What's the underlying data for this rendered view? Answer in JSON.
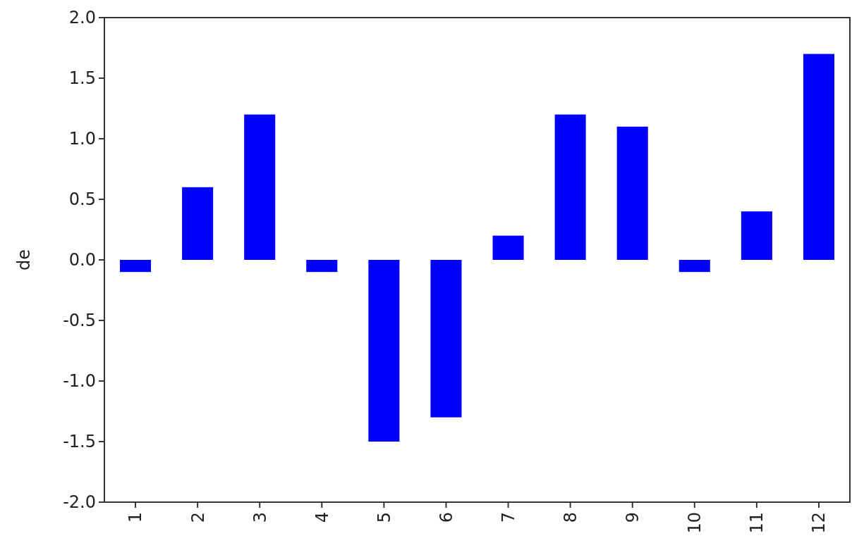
{
  "chart_data": {
    "type": "bar",
    "ylabel": "de",
    "categories": [
      "1",
      "2",
      "3",
      "4",
      "5",
      "6",
      "7",
      "8",
      "9",
      "10",
      "11",
      "12"
    ],
    "values": [
      -0.1,
      0.6,
      1.2,
      -0.1,
      -1.5,
      -1.3,
      0.2,
      1.2,
      1.1,
      -0.1,
      0.4,
      1.7
    ],
    "color": "#0000ff",
    "ylim": [
      -2.0,
      2.0
    ],
    "yticks": [
      {
        "value": -2,
        "label": "-2.0"
      },
      {
        "value": -1.5,
        "label": "-1.5"
      },
      {
        "value": -1,
        "label": "-1.0"
      },
      {
        "value": -0.5,
        "label": "-0.5"
      },
      {
        "value": 0,
        "label": "0.0"
      },
      {
        "value": 0.5,
        "label": "0.5"
      },
      {
        "value": 1,
        "label": "1.0"
      },
      {
        "value": 1.5,
        "label": "1.5"
      },
      {
        "value": 2,
        "label": "2.0"
      }
    ],
    "grid": false
  }
}
